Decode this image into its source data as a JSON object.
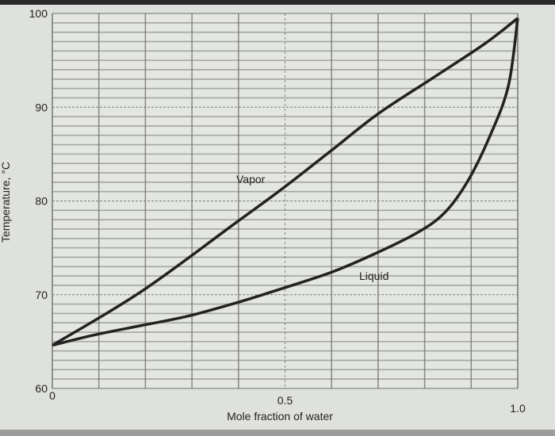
{
  "chart_data": {
    "type": "line",
    "title": "",
    "xlabel": "Mole fraction of water",
    "ylabel": "Temperature, °C",
    "xlim": [
      0,
      1.0
    ],
    "ylim": [
      60,
      100
    ],
    "xticks": [
      "0",
      "0.5",
      "1.0"
    ],
    "xtick_values": [
      0,
      0.5,
      1.0
    ],
    "yticks": [
      "60",
      "70",
      "80",
      "90",
      "100"
    ],
    "ytick_values": [
      60,
      70,
      80,
      90,
      100
    ],
    "grid": true,
    "series": [
      {
        "name": "Vapor",
        "x": [
          0,
          0.19,
          0.395,
          0.494,
          0.6,
          0.7,
          0.82,
          0.93,
          1.0
        ],
        "y": [
          64.6,
          70.3,
          77.7,
          81.3,
          85.4,
          89.3,
          93.2,
          96.8,
          99.5
        ]
      },
      {
        "name": "Liquid",
        "x": [
          0,
          0.09,
          0.19,
          0.29,
          0.4,
          0.49,
          0.6,
          0.69,
          0.78,
          0.84,
          0.89,
          0.94,
          0.98,
          1.0
        ],
        "y": [
          64.6,
          65.7,
          66.7,
          67.7,
          69.2,
          70.6,
          72.4,
          74.3,
          76.5,
          78.6,
          81.9,
          86.9,
          92.3,
          99.5
        ]
      }
    ],
    "colors": {
      "line": "#222222",
      "grid": "#6f716c",
      "background": "#e4e6e1"
    }
  }
}
